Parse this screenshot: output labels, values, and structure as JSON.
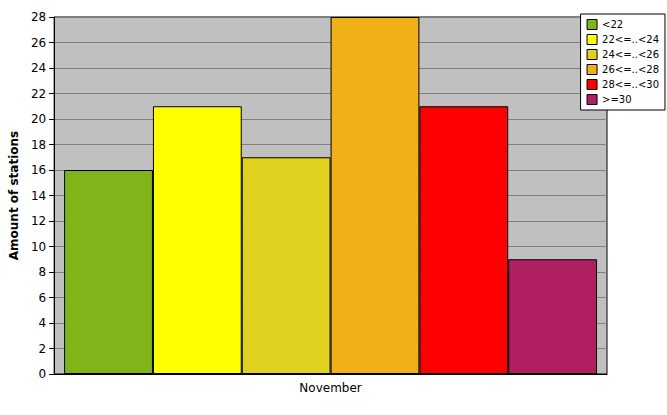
{
  "chart_data": {
    "type": "bar",
    "categories": [
      "November"
    ],
    "ylabel": "Amount of stations",
    "series": [
      {
        "name": "<22",
        "color": "#80b418",
        "values": [
          16
        ]
      },
      {
        "name": "22<=..<24",
        "color": "#ffff00",
        "values": [
          21
        ]
      },
      {
        "name": "24<=..<26",
        "color": "#e0d020",
        "values": [
          17
        ]
      },
      {
        "name": "26<=..<28",
        "color": "#f0b018",
        "values": [
          28
        ]
      },
      {
        "name": "28<=..<30",
        "color": "#ff0000",
        "values": [
          21
        ]
      },
      {
        "name": ">=30",
        "color": "#b02060",
        "values": [
          9
        ]
      }
    ],
    "ylim": [
      0,
      28
    ],
    "yticks": [
      0,
      2,
      4,
      6,
      8,
      10,
      12,
      14,
      16,
      18,
      20,
      22,
      24,
      26,
      28
    ],
    "grid": true,
    "legend": "upper right"
  }
}
